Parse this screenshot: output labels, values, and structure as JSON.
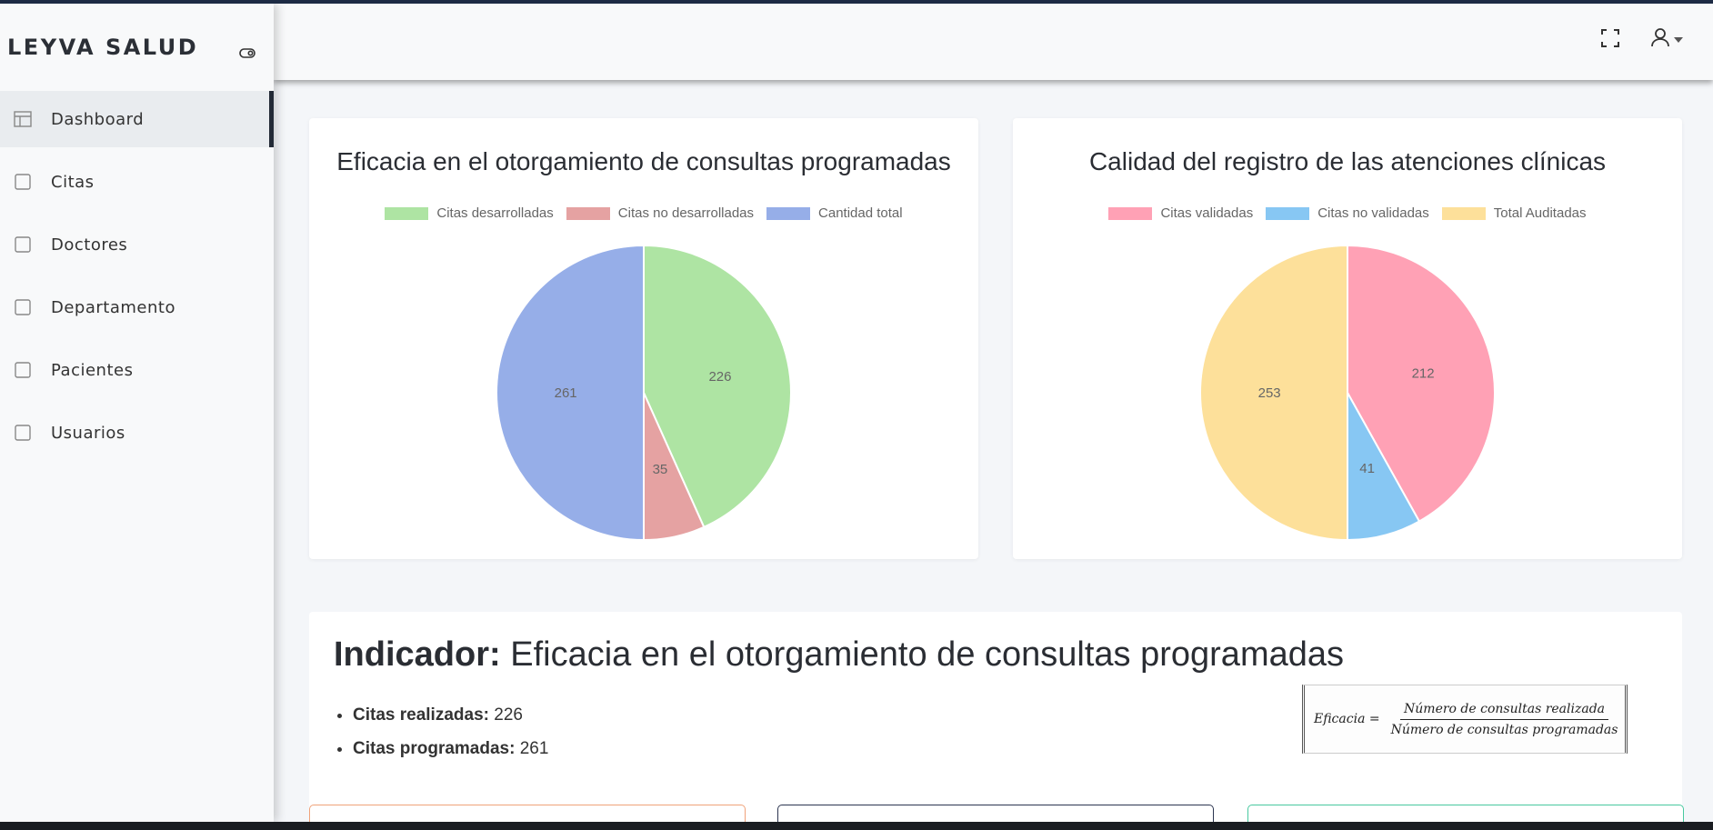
{
  "brand": {
    "name": "LEYVA SALUD"
  },
  "sidebar": {
    "items": [
      {
        "label": "Dashboard",
        "icon": "layout-icon",
        "active": true
      },
      {
        "label": "Citas",
        "icon": "square-icon",
        "active": false
      },
      {
        "label": "Doctores",
        "icon": "square-icon",
        "active": false
      },
      {
        "label": "Departamento",
        "icon": "square-icon",
        "active": false
      },
      {
        "label": "Pacientes",
        "icon": "square-icon",
        "active": false
      },
      {
        "label": "Usuarios",
        "icon": "square-icon",
        "active": false
      }
    ]
  },
  "header": {
    "icons": [
      "fullscreen-icon",
      "user-icon",
      "caret-down-icon"
    ]
  },
  "chart_data": [
    {
      "type": "pie",
      "title": "Eficacia en el otorgamiento de consultas programadas",
      "legend_position": "top",
      "categories": [
        "Citas desarrolladas",
        "Citas no desarrolladas",
        "Cantidad total"
      ],
      "values": [
        226,
        35,
        261
      ],
      "colors": [
        "#aee4a3",
        "#e5a2a2",
        "#96aee8"
      ]
    },
    {
      "type": "pie",
      "title": "Calidad del registro de las atenciones clínicas",
      "legend_position": "top",
      "categories": [
        "Citas validadas",
        "Citas no validadas",
        "Total Auditadas"
      ],
      "values": [
        212,
        41,
        253
      ],
      "colors": [
        "#ffa1b5",
        "#87c7f3",
        "#fde09a"
      ]
    }
  ],
  "indicator": {
    "label": "Indicador:",
    "name": "Eficacia en el otorgamiento de consultas programadas",
    "items": [
      {
        "label": "Citas realizadas:",
        "value": "226"
      },
      {
        "label": "Citas programadas:",
        "value": "261"
      }
    ],
    "formula": {
      "lhs": "Eficacia =",
      "numerator": "Número de consultas realizada",
      "denominator": "Número de consultas programadas"
    }
  },
  "colors": {
    "sidebar_active_bar": "#232a36",
    "topline": "#1d2b44"
  }
}
